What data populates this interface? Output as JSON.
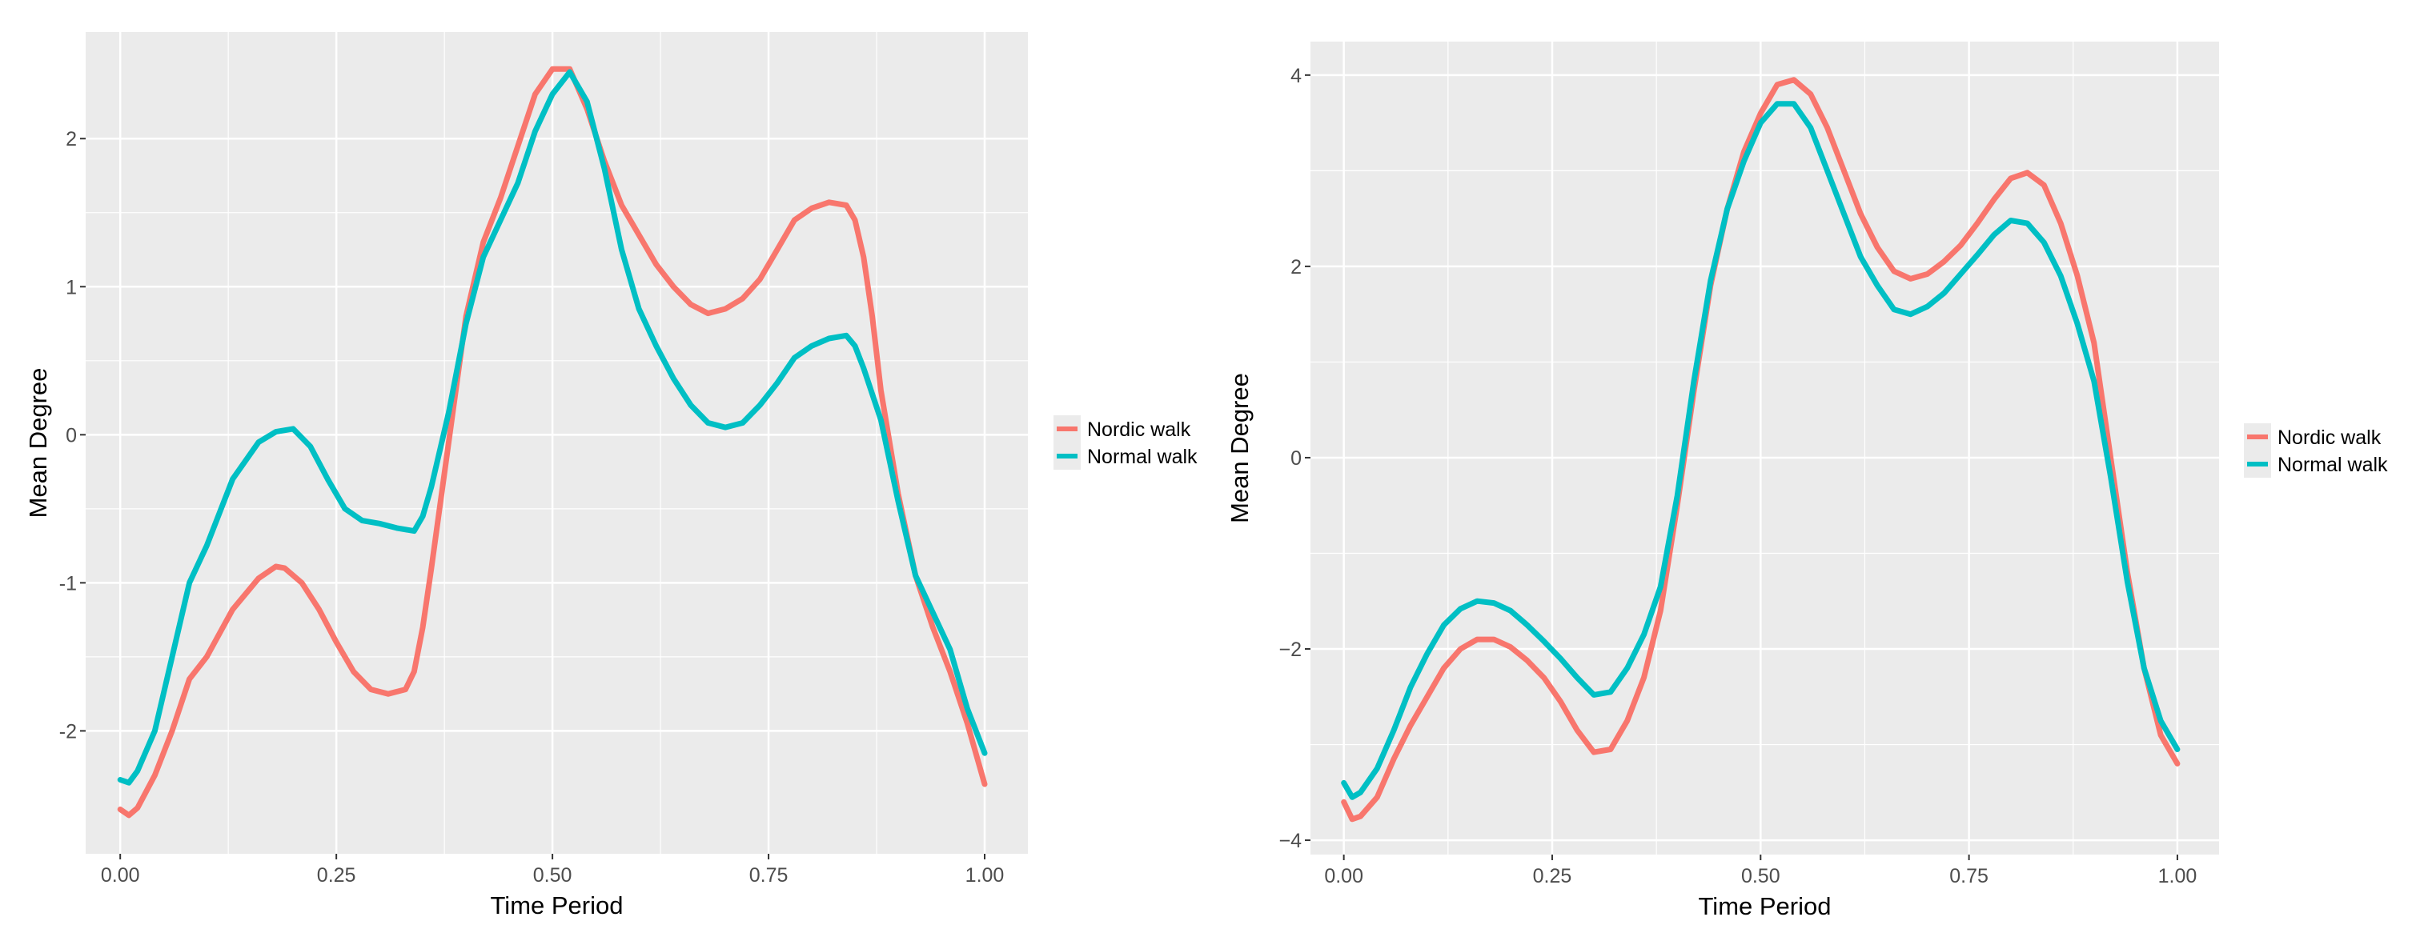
{
  "colors": {
    "panel_bg": "#EBEBEB",
    "grid": "#FFFFFF",
    "text": "#000000",
    "tick_text": "#4D4D4D",
    "tick_mark": "#333333",
    "legend_key_bg": "#EBEBEB"
  },
  "chart_data": [
    {
      "type": "line",
      "xlabel": "Time Period",
      "ylabel": "Mean Degree",
      "xlim": [
        -0.04,
        1.05
      ],
      "ylim": [
        -2.83,
        2.72
      ],
      "x_ticks": [
        0,
        0.25,
        0.5,
        0.75,
        1.0
      ],
      "x_tick_labels": [
        "0.00",
        "0.25",
        "0.50",
        "0.75",
        "1.00"
      ],
      "y_ticks": [
        -2,
        -1,
        0,
        1,
        2
      ],
      "y_tick_labels": [
        "-2",
        "-1",
        "0",
        "1",
        "2"
      ],
      "grid": true,
      "legend": "right",
      "series": [
        {
          "name": "Nordic walk",
          "color": "#F8766D",
          "x": [
            0.0,
            0.01,
            0.02,
            0.04,
            0.06,
            0.08,
            0.1,
            0.13,
            0.16,
            0.18,
            0.19,
            0.21,
            0.23,
            0.25,
            0.27,
            0.29,
            0.31,
            0.33,
            0.34,
            0.35,
            0.36,
            0.38,
            0.4,
            0.42,
            0.44,
            0.46,
            0.48,
            0.5,
            0.52,
            0.54,
            0.56,
            0.58,
            0.6,
            0.62,
            0.64,
            0.66,
            0.68,
            0.7,
            0.72,
            0.74,
            0.76,
            0.78,
            0.8,
            0.82,
            0.84,
            0.85,
            0.86,
            0.87,
            0.88,
            0.9,
            0.92,
            0.94,
            0.96,
            0.98,
            1.0
          ],
          "y": [
            -2.53,
            -2.57,
            -2.52,
            -2.3,
            -2.0,
            -1.65,
            -1.5,
            -1.18,
            -0.97,
            -0.89,
            -0.9,
            -1.0,
            -1.18,
            -1.4,
            -1.6,
            -1.72,
            -1.75,
            -1.72,
            -1.6,
            -1.3,
            -0.9,
            -0.05,
            0.8,
            1.3,
            1.6,
            1.95,
            2.3,
            2.47,
            2.47,
            2.2,
            1.85,
            1.55,
            1.35,
            1.15,
            1.0,
            0.88,
            0.82,
            0.85,
            0.92,
            1.05,
            1.25,
            1.45,
            1.53,
            1.57,
            1.55,
            1.45,
            1.2,
            0.8,
            0.3,
            -0.4,
            -0.95,
            -1.3,
            -1.6,
            -1.95,
            -2.36
          ]
        },
        {
          "name": "Normal walk",
          "color": "#00BFC4",
          "x": [
            0.0,
            0.01,
            0.02,
            0.04,
            0.06,
            0.08,
            0.1,
            0.13,
            0.16,
            0.18,
            0.2,
            0.22,
            0.24,
            0.26,
            0.28,
            0.3,
            0.32,
            0.34,
            0.35,
            0.36,
            0.38,
            0.4,
            0.42,
            0.44,
            0.46,
            0.48,
            0.5,
            0.52,
            0.54,
            0.56,
            0.58,
            0.6,
            0.62,
            0.64,
            0.66,
            0.68,
            0.7,
            0.72,
            0.74,
            0.76,
            0.78,
            0.8,
            0.82,
            0.84,
            0.85,
            0.86,
            0.88,
            0.9,
            0.92,
            0.94,
            0.96,
            0.98,
            1.0
          ],
          "y": [
            -2.33,
            -2.35,
            -2.27,
            -2.0,
            -1.5,
            -1.0,
            -0.75,
            -0.3,
            -0.05,
            0.02,
            0.04,
            -0.08,
            -0.3,
            -0.5,
            -0.58,
            -0.6,
            -0.63,
            -0.65,
            -0.55,
            -0.35,
            0.15,
            0.75,
            1.2,
            1.45,
            1.7,
            2.05,
            2.3,
            2.45,
            2.25,
            1.8,
            1.25,
            0.85,
            0.6,
            0.38,
            0.2,
            0.08,
            0.05,
            0.08,
            0.2,
            0.35,
            0.52,
            0.6,
            0.65,
            0.67,
            0.6,
            0.45,
            0.1,
            -0.45,
            -0.95,
            -1.2,
            -1.45,
            -1.85,
            -2.15
          ]
        }
      ]
    },
    {
      "type": "line",
      "xlabel": "Time Period",
      "ylabel": "Mean Degree",
      "xlim": [
        -0.04,
        1.05
      ],
      "ylim": [
        -4.15,
        4.35
      ],
      "x_ticks": [
        0,
        0.25,
        0.5,
        0.75,
        1.0
      ],
      "x_tick_labels": [
        "0.00",
        "0.25",
        "0.50",
        "0.75",
        "1.00"
      ],
      "y_ticks": [
        -4,
        -2,
        0,
        2,
        4
      ],
      "y_tick_labels": [
        "−4",
        "−2",
        "0",
        "2",
        "4"
      ],
      "grid": true,
      "legend": "right",
      "series": [
        {
          "name": "Nordic walk",
          "color": "#F8766D",
          "x": [
            0.0,
            0.01,
            0.02,
            0.04,
            0.06,
            0.08,
            0.1,
            0.12,
            0.14,
            0.16,
            0.18,
            0.2,
            0.22,
            0.24,
            0.26,
            0.28,
            0.3,
            0.32,
            0.34,
            0.36,
            0.38,
            0.4,
            0.42,
            0.44,
            0.46,
            0.48,
            0.5,
            0.52,
            0.54,
            0.56,
            0.58,
            0.6,
            0.62,
            0.64,
            0.66,
            0.68,
            0.7,
            0.72,
            0.74,
            0.76,
            0.78,
            0.8,
            0.82,
            0.84,
            0.86,
            0.88,
            0.9,
            0.92,
            0.94,
            0.96,
            0.98,
            1.0
          ],
          "y": [
            -3.6,
            -3.78,
            -3.75,
            -3.55,
            -3.15,
            -2.8,
            -2.5,
            -2.2,
            -2.0,
            -1.9,
            -1.9,
            -1.98,
            -2.12,
            -2.3,
            -2.55,
            -2.85,
            -3.08,
            -3.05,
            -2.75,
            -2.3,
            -1.6,
            -0.5,
            0.7,
            1.8,
            2.6,
            3.2,
            3.6,
            3.9,
            3.95,
            3.8,
            3.45,
            3.0,
            2.55,
            2.2,
            1.95,
            1.87,
            1.92,
            2.05,
            2.22,
            2.45,
            2.7,
            2.92,
            2.98,
            2.85,
            2.45,
            1.9,
            1.2,
            0.0,
            -1.2,
            -2.2,
            -2.9,
            -3.2
          ]
        },
        {
          "name": "Normal walk",
          "color": "#00BFC4",
          "x": [
            0.0,
            0.01,
            0.02,
            0.04,
            0.06,
            0.08,
            0.1,
            0.12,
            0.14,
            0.16,
            0.18,
            0.2,
            0.22,
            0.24,
            0.26,
            0.28,
            0.3,
            0.32,
            0.34,
            0.36,
            0.38,
            0.4,
            0.42,
            0.44,
            0.46,
            0.48,
            0.5,
            0.52,
            0.54,
            0.56,
            0.58,
            0.6,
            0.62,
            0.64,
            0.66,
            0.68,
            0.7,
            0.72,
            0.74,
            0.76,
            0.78,
            0.8,
            0.82,
            0.84,
            0.86,
            0.88,
            0.9,
            0.92,
            0.94,
            0.96,
            0.98,
            1.0
          ],
          "y": [
            -3.4,
            -3.55,
            -3.5,
            -3.25,
            -2.85,
            -2.4,
            -2.05,
            -1.75,
            -1.58,
            -1.5,
            -1.52,
            -1.6,
            -1.75,
            -1.92,
            -2.1,
            -2.3,
            -2.48,
            -2.45,
            -2.2,
            -1.85,
            -1.35,
            -0.4,
            0.8,
            1.85,
            2.6,
            3.1,
            3.5,
            3.7,
            3.7,
            3.45,
            3.0,
            2.55,
            2.1,
            1.8,
            1.55,
            1.5,
            1.58,
            1.72,
            1.92,
            2.12,
            2.33,
            2.48,
            2.45,
            2.25,
            1.9,
            1.4,
            0.8,
            -0.2,
            -1.3,
            -2.2,
            -2.75,
            -3.05
          ]
        }
      ]
    }
  ]
}
